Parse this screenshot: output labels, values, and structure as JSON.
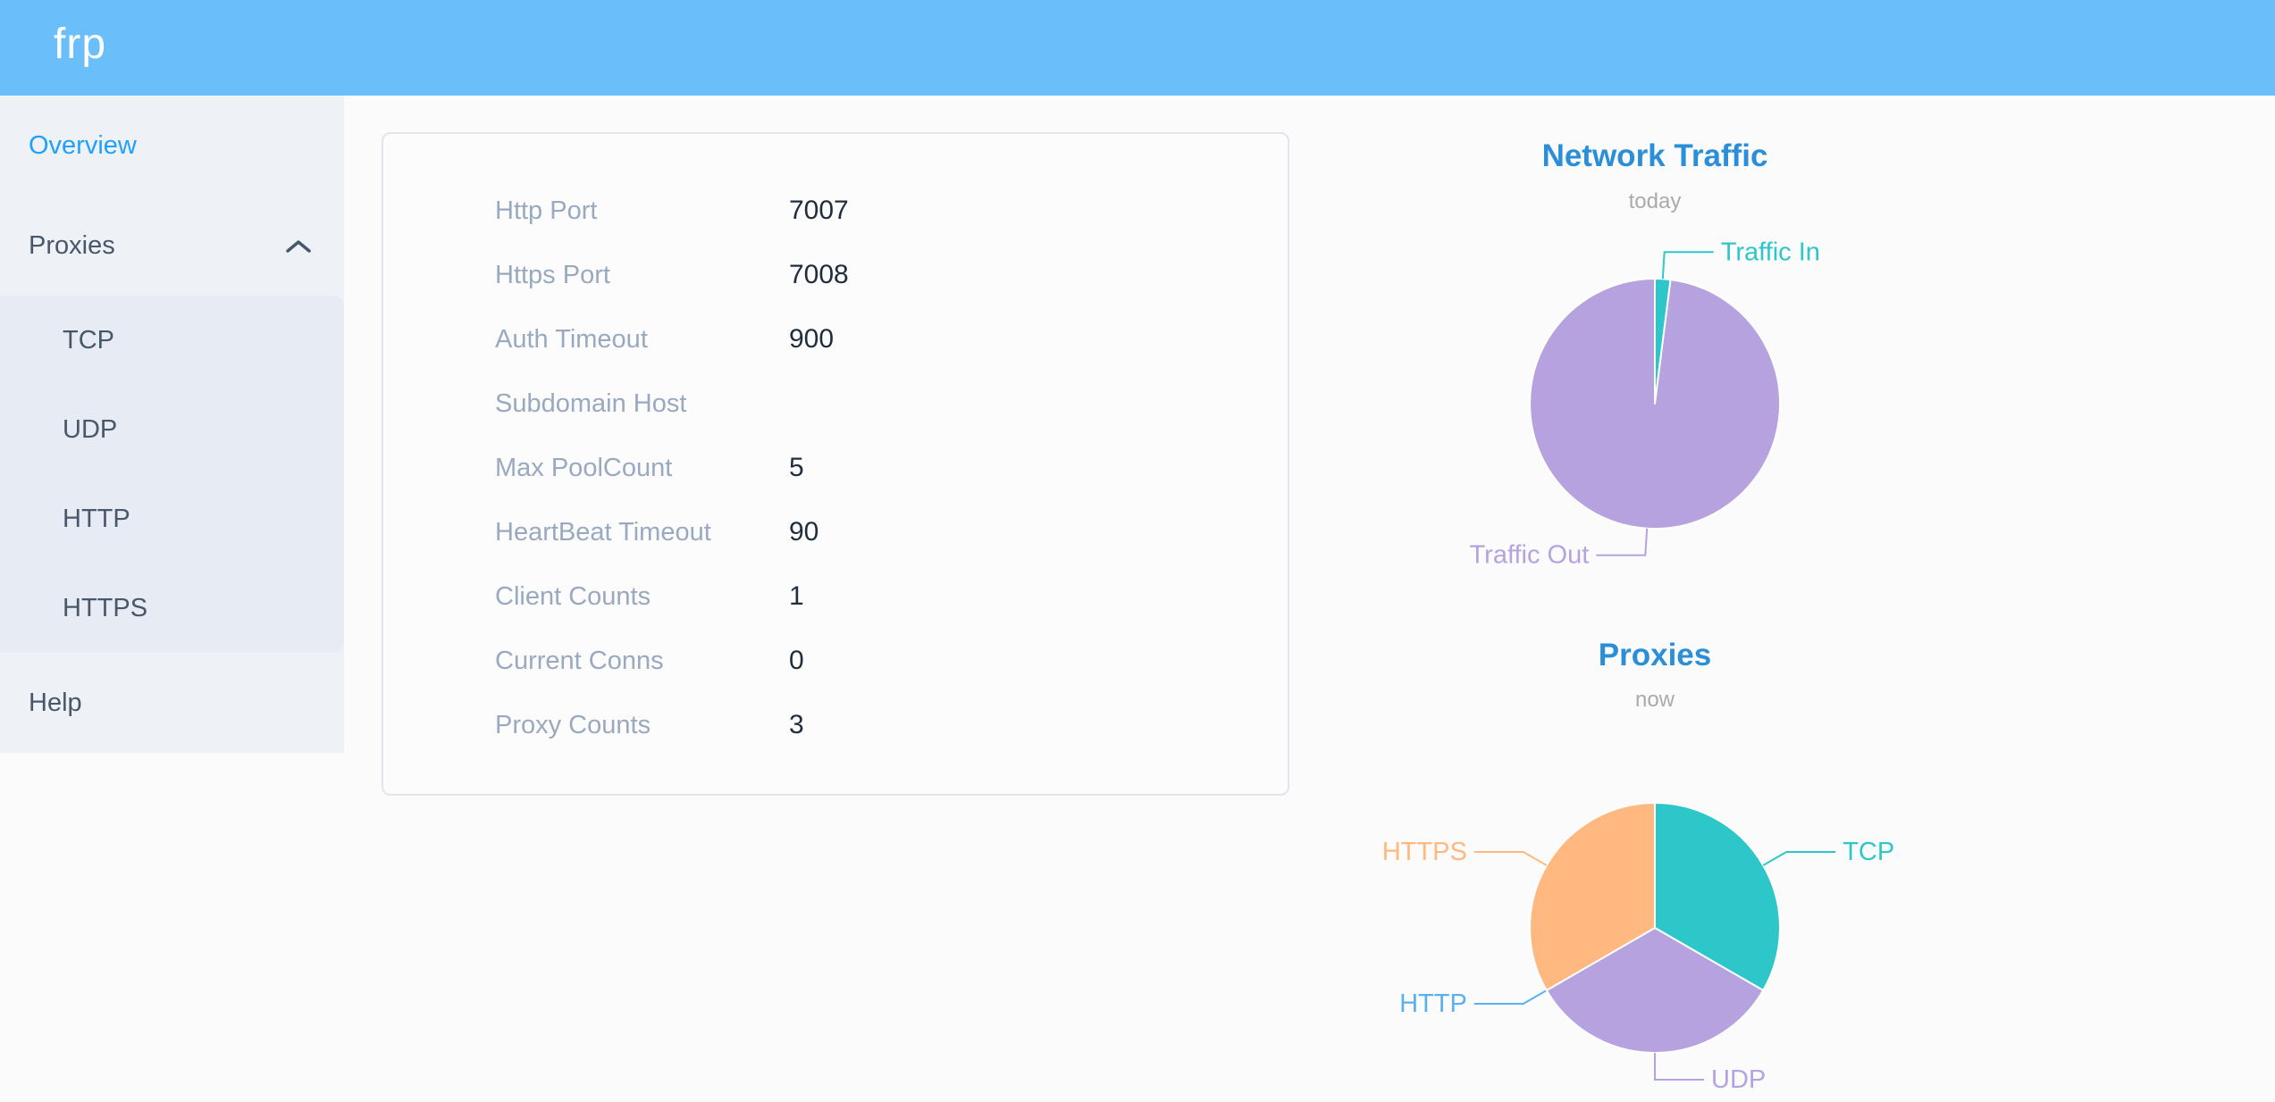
{
  "theme": {
    "header_bg": "#6abefa",
    "sidebar_bg": "#eef1f6",
    "submenu_bg": "#e7ebf3",
    "menu_text": "#48576a",
    "active_item": "#20a0ff",
    "label_gray": "#99a9bf",
    "value_black": "#1f2d3d",
    "chart_title_blue": "#2a8ed8",
    "subtitle_gray": "#aaaaaa",
    "page_bg": "#fbfbfb",
    "panel_border": "#e0e5ee"
  },
  "header": {
    "logo_text": "frp"
  },
  "sidebar": {
    "overview_label": "Overview",
    "proxies_label": "Proxies",
    "proxies_expanded": true,
    "submenu": [
      "TCP",
      "UDP",
      "HTTP",
      "HTTPS"
    ],
    "help_label": "Help"
  },
  "overview_panel": {
    "rows": [
      {
        "label": "Http Port",
        "value": "7007"
      },
      {
        "label": "Https Port",
        "value": "7008"
      },
      {
        "label": "Auth Timeout",
        "value": "900"
      },
      {
        "label": "Subdomain Host",
        "value": ""
      },
      {
        "label": "Max PoolCount",
        "value": "5"
      },
      {
        "label": "HeartBeat Timeout",
        "value": "90"
      },
      {
        "label": "Client Counts",
        "value": "1"
      },
      {
        "label": "Current Conns",
        "value": "0"
      },
      {
        "label": "Proxy Counts",
        "value": "3"
      }
    ]
  },
  "chart_data": [
    {
      "type": "pie",
      "title": "Network Traffic",
      "subtitle": "today",
      "labels": [
        "Traffic In",
        "Traffic Out"
      ],
      "values": [
        2,
        98
      ],
      "unit": "percent (estimated from slice angles)",
      "colors": [
        "#2ec7c9",
        "#b6a2de"
      ],
      "legend_position": "none",
      "start_angle": "top, clockwise"
    },
    {
      "type": "pie",
      "title": "Proxies",
      "subtitle": "now",
      "labels": [
        "TCP",
        "UDP",
        "HTTP",
        "HTTPS"
      ],
      "values": [
        1,
        1,
        0,
        1
      ],
      "unit": "proxy count",
      "colors": [
        "#2ec7c9",
        "#b6a2de",
        "#5ab1ef",
        "#ffb980"
      ],
      "legend_position": "none",
      "start_angle": "top, clockwise"
    }
  ]
}
